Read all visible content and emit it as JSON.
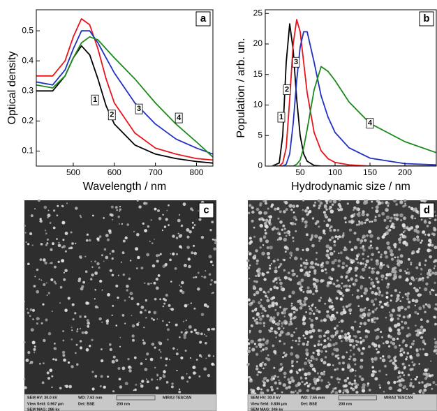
{
  "chart_data": [
    {
      "type": "line",
      "panel": "a",
      "x_label": "Wavelength / nm",
      "y_label": "Optical density",
      "x": [
        410,
        450,
        480,
        500,
        520,
        540,
        560,
        580,
        600,
        650,
        700,
        750,
        800,
        840
      ],
      "series": [
        {
          "name": "1",
          "color": "#000000",
          "values": [
            0.3,
            0.3,
            0.35,
            0.41,
            0.45,
            0.42,
            0.34,
            0.25,
            0.19,
            0.12,
            0.09,
            0.075,
            0.065,
            0.06
          ]
        },
        {
          "name": "2",
          "color": "#e8141c",
          "values": [
            0.35,
            0.35,
            0.4,
            0.48,
            0.54,
            0.52,
            0.44,
            0.34,
            0.26,
            0.16,
            0.11,
            0.09,
            0.075,
            0.07
          ]
        },
        {
          "name": "3",
          "color": "#2030c0",
          "values": [
            0.33,
            0.32,
            0.37,
            0.44,
            0.5,
            0.5,
            0.46,
            0.41,
            0.36,
            0.26,
            0.19,
            0.14,
            0.11,
            0.09
          ]
        },
        {
          "name": "4",
          "color": "#1a8a1a",
          "values": [
            0.32,
            0.31,
            0.35,
            0.41,
            0.46,
            0.48,
            0.47,
            0.44,
            0.41,
            0.34,
            0.26,
            0.19,
            0.13,
            0.08
          ]
        }
      ],
      "annotations": [
        {
          "text": "1",
          "x": 553,
          "y": 0.27
        },
        {
          "text": "2",
          "x": 594,
          "y": 0.22
        },
        {
          "text": "3",
          "x": 660,
          "y": 0.24
        },
        {
          "text": "4",
          "x": 757,
          "y": 0.21
        }
      ],
      "xlim": [
        410,
        840
      ],
      "xticks": [
        500,
        600,
        700,
        800
      ],
      "ylim": [
        0.05,
        0.57
      ],
      "yticks": [
        0.1,
        0.2,
        0.3,
        0.4,
        0.5
      ]
    },
    {
      "type": "line",
      "panel": "b",
      "x_label": "Hydrodynamic size / nm",
      "y_label": "Population / arb. un.",
      "x": [
        10,
        20,
        25,
        30,
        35,
        40,
        45,
        50,
        55,
        60,
        70,
        80,
        90,
        100,
        120,
        150,
        200,
        245
      ],
      "series": [
        {
          "name": "1",
          "color": "#000000",
          "values": [
            0,
            0.5,
            5,
            17,
            23.3,
            19,
            11,
            5,
            2,
            0.8,
            0.1,
            0,
            0,
            0,
            0,
            0,
            0,
            0
          ]
        },
        {
          "name": "2",
          "color": "#e8141c",
          "values": [
            0,
            0,
            0.5,
            3,
            11,
            20,
            24,
            22,
            17,
            12,
            5.5,
            2.5,
            1.2,
            0.6,
            0.2,
            0,
            0,
            0
          ]
        },
        {
          "name": "3",
          "color": "#2030c0",
          "values": [
            0,
            0,
            0,
            0.3,
            2,
            7,
            14,
            19.5,
            22,
            22,
            17,
            11.5,
            8,
            5.5,
            3,
            1.3,
            0.4,
            0.2
          ]
        },
        {
          "name": "4",
          "color": "#1a8a1a",
          "values": [
            0,
            0,
            0,
            0,
            0,
            0,
            0.3,
            1,
            3,
            6,
            12.5,
            16.3,
            15.5,
            14,
            10.5,
            7,
            4,
            2.2
          ]
        }
      ],
      "annotations": [
        {
          "text": "1",
          "x": 23,
          "y": 8
        },
        {
          "text": "2",
          "x": 31,
          "y": 12.5
        },
        {
          "text": "3",
          "x": 44,
          "y": 17
        },
        {
          "text": "4",
          "x": 150,
          "y": 7
        }
      ],
      "xlim": [
        0,
        245
      ],
      "xticks": [
        50,
        100,
        150,
        200
      ],
      "ylim": [
        0,
        25.6
      ],
      "yticks": [
        0,
        5,
        10,
        15,
        20,
        25
      ]
    }
  ],
  "images": [
    {
      "panel": "c",
      "info": [
        "SEM HV: 30.0 kV",
        "WD: 7.63 mm",
        "MIRA3 TESCAN",
        "View field: 0.967 µm",
        "Det: BSE",
        "200 nm",
        "SEM MAG: 286 kx"
      ]
    },
    {
      "panel": "d",
      "info": [
        "SEM HV: 30.0 kV",
        "WD: 7.55 mm",
        "MIRA3 TESCAN",
        "View field: 0.836 µm",
        "Det: BSE",
        "200 nm",
        "SEM MAG: 346 kx"
      ]
    }
  ]
}
